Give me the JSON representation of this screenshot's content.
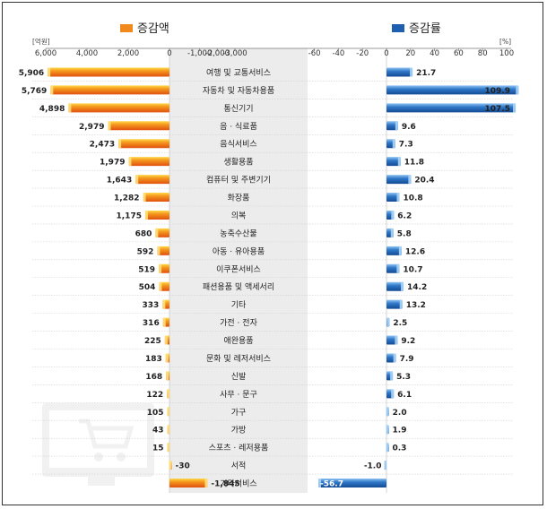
{
  "chart_data": [
    {
      "type": "bar",
      "legend": "증감액",
      "unit": "[억원]",
      "axis_ticks": [
        "6,000",
        "4,000",
        "2,000",
        "0",
        "-1,000",
        "-2,000",
        "-3,000"
      ],
      "xlim": [
        -3000,
        6000
      ],
      "categories": [
        "여행 및 교통서비스",
        "자동차 및 자동차용품",
        "통신기기",
        "음 · 식료품",
        "음식서비스",
        "생활용품",
        "컴퓨터 및 주변기기",
        "화장품",
        "의복",
        "농축수산물",
        "아동 · 유아용품",
        "이쿠폰서비스",
        "패션용품 및 액세서리",
        "기타",
        "가전 · 전자",
        "애완용품",
        "문화 및 레저서비스",
        "신발",
        "사무 · 문구",
        "가구",
        "가방",
        "스포츠 · 레저용품",
        "서적",
        "기타서비스"
      ],
      "values": [
        5906,
        5769,
        4898,
        2979,
        2473,
        1979,
        1643,
        1282,
        1175,
        680,
        592,
        519,
        504,
        333,
        316,
        225,
        183,
        168,
        122,
        105,
        43,
        15,
        -30,
        -1845
      ],
      "value_labels": [
        "5,906",
        "5,769",
        "4,898",
        "2,979",
        "2,473",
        "1,979",
        "1,643",
        "1,282",
        "1,175",
        "680",
        "592",
        "519",
        "504",
        "333",
        "316",
        "225",
        "183",
        "168",
        "122",
        "105",
        "43",
        "15",
        "-30",
        "-1,845"
      ],
      "color": "#f08a1c"
    },
    {
      "type": "bar",
      "legend": "증감률",
      "unit": "[%]",
      "axis_ticks": [
        "-60",
        "-40",
        "-20",
        "0",
        "20",
        "40",
        "60",
        "80",
        "100"
      ],
      "xlim": [
        -60,
        100
      ],
      "categories": [
        "여행 및 교통서비스",
        "자동차 및 자동차용품",
        "통신기기",
        "음 · 식료품",
        "음식서비스",
        "생활용품",
        "컴퓨터 및 주변기기",
        "화장품",
        "의복",
        "농축수산물",
        "아동 · 유아용품",
        "이쿠폰서비스",
        "패션용품 및 액세서리",
        "기타",
        "가전 · 전자",
        "애완용품",
        "문화 및 레저서비스",
        "신발",
        "사무 · 문구",
        "가구",
        "가방",
        "스포츠 · 레저용품",
        "서적",
        "기타서비스"
      ],
      "values": [
        21.7,
        109.9,
        107.5,
        9.6,
        7.3,
        11.8,
        20.4,
        10.8,
        6.2,
        5.8,
        12.6,
        10.7,
        14.2,
        13.2,
        2.5,
        9.2,
        7.9,
        5.3,
        6.1,
        2.0,
        1.9,
        0.3,
        -1.0,
        -56.7
      ],
      "value_labels": [
        "21.7",
        "109.9",
        "107.5",
        "9.6",
        "7.3",
        "11.8",
        "20.4",
        "10.8",
        "6.2",
        "5.8",
        "12.6",
        "10.7",
        "14.2",
        "13.2",
        "2.5",
        "9.2",
        "7.9",
        "5.3",
        "6.1",
        "2.0",
        "1.9",
        "0.3",
        "-1.0",
        "-56.7"
      ],
      "color": "#1f5fb0"
    }
  ]
}
